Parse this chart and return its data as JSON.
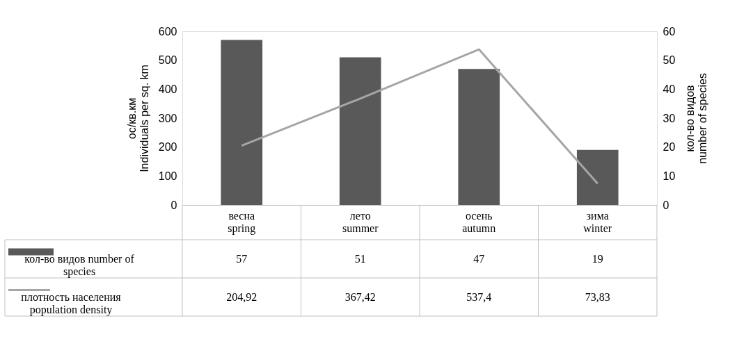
{
  "chart_data": {
    "type": "bar",
    "categories": [
      "весна\nspring",
      "лето\nsummer",
      "осень\nautumn",
      "зима\nwinter"
    ],
    "ylabel": "ос/кв.км\nIndividuals per sq. km",
    "y2label": "кол-во видов\nnumber of species",
    "ylim": [
      0,
      600
    ],
    "yticks": [
      0,
      100,
      200,
      300,
      400,
      500,
      600
    ],
    "y2lim": [
      0,
      60
    ],
    "y2ticks": [
      0,
      10,
      20,
      30,
      40,
      50,
      60
    ],
    "series": [
      {
        "name": "кол-во видов  number of species",
        "axis": "y2",
        "color": "#595959",
        "values": [
          57,
          51,
          47,
          19
        ],
        "value_labels": [
          "57",
          "51",
          "47",
          "19"
        ]
      },
      {
        "name": "плотность населения population density",
        "type": "line",
        "color": "#a6a6a6",
        "values": [
          204.92,
          367.42,
          537.4,
          73.83
        ],
        "value_labels": [
          "204,92",
          "367,42",
          "537,4",
          "73,83"
        ]
      }
    ],
    "grid": false,
    "legend": "bottom left"
  }
}
